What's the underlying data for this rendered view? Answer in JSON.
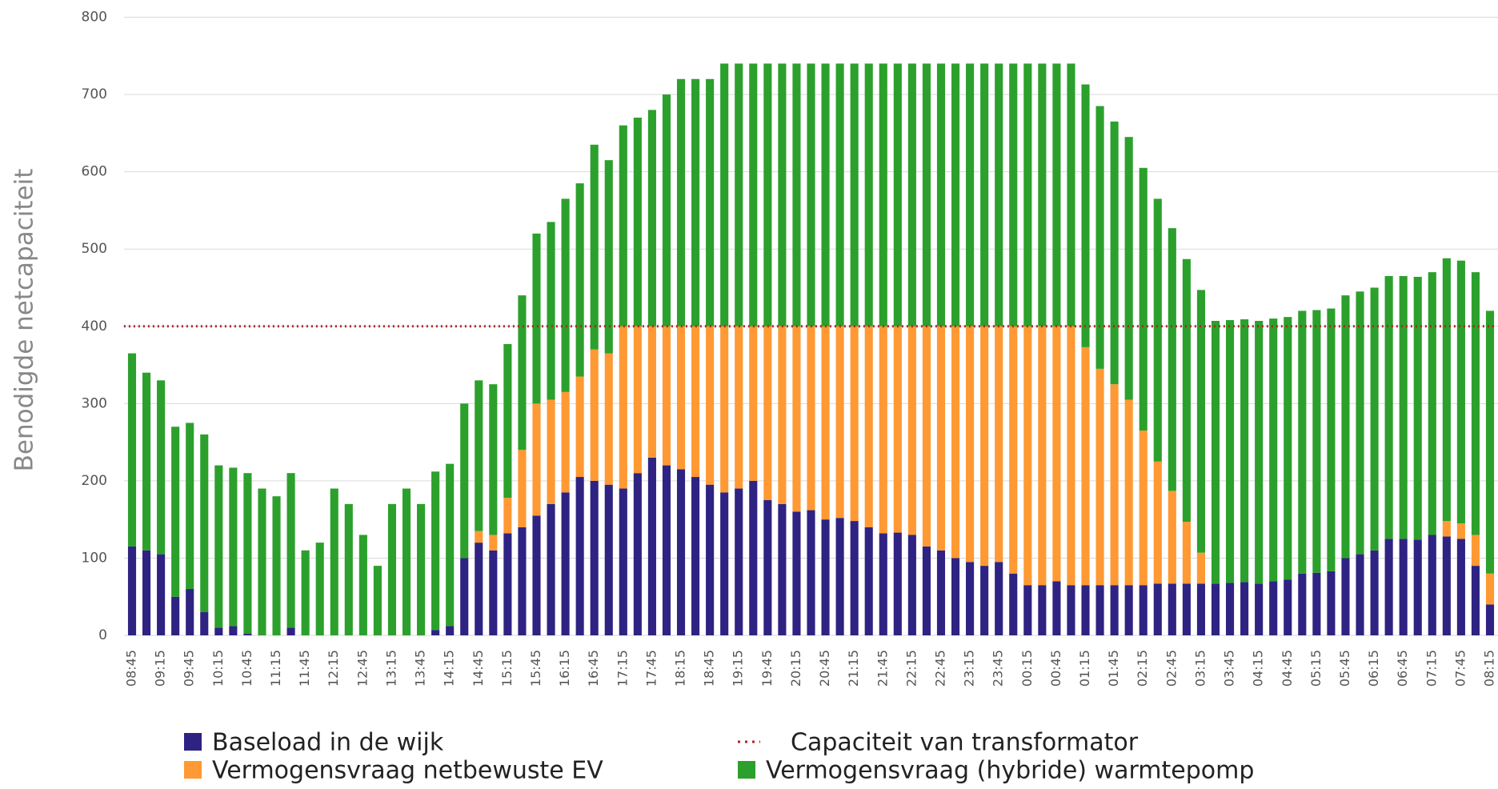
{
  "chart_data": {
    "type": "bar",
    "stacked": true,
    "y_label": "Benodigde netcapaciteit",
    "categories": [
      "08:45",
      null,
      "09:15",
      null,
      "09:45",
      null,
      "10:15",
      null,
      "10:45",
      null,
      "11:15",
      null,
      "11:45",
      null,
      "12:15",
      null,
      "12:45",
      null,
      "13:15",
      null,
      "13:45",
      null,
      "14:15",
      null,
      "14:45",
      null,
      "15:15",
      null,
      "15:45",
      null,
      "16:15",
      null,
      "16:45",
      null,
      "17:15",
      null,
      "17:45",
      null,
      "18:15",
      null,
      "18:45",
      null,
      "19:15",
      null,
      "19:45",
      null,
      "20:15",
      null,
      "20:45",
      null,
      "21:15",
      null,
      "21:45",
      null,
      "22:15",
      null,
      "22:45",
      null,
      "23:15",
      null,
      "23:45",
      null,
      "00:15",
      null,
      "00:45",
      null,
      "01:15",
      null,
      "01:45",
      null,
      "02:15",
      null,
      "02:45",
      null,
      "03:15",
      null,
      "03:45",
      null,
      "04:15",
      null,
      "04:45",
      null,
      "05:15",
      null,
      "05:45",
      null,
      "06:15",
      null,
      "06:45",
      null,
      "07:15",
      null,
      "07:45",
      null,
      "08:15"
    ],
    "series": [
      {
        "name": "Baseload in de wijk",
        "color": "#2e2382",
        "values": [
          115,
          110,
          105,
          50,
          60,
          30,
          10,
          12,
          2,
          0,
          0,
          10,
          0,
          0,
          0,
          0,
          0,
          0,
          0,
          0,
          0,
          7,
          12,
          100,
          120,
          110,
          132,
          140,
          155,
          170,
          185,
          205,
          200,
          195,
          190,
          210,
          230,
          220,
          215,
          205,
          195,
          185,
          190,
          200,
          175,
          170,
          160,
          162,
          150,
          152,
          148,
          140,
          132,
          133,
          130,
          115,
          110,
          100,
          95,
          90,
          95,
          80,
          65,
          65,
          70,
          65,
          65,
          65,
          65,
          65,
          65,
          67,
          67,
          67,
          67,
          67,
          68,
          69,
          67,
          70,
          72,
          80,
          81,
          83,
          100,
          105,
          110,
          125,
          125,
          124,
          130,
          128,
          125,
          90,
          40
        ]
      },
      {
        "name": "Vermogensvraag  netbewuste EV",
        "color": "#ff9933",
        "values": [
          0,
          0,
          0,
          0,
          0,
          0,
          0,
          0,
          0,
          0,
          0,
          0,
          0,
          0,
          0,
          0,
          0,
          0,
          0,
          0,
          0,
          0,
          0,
          0,
          15,
          20,
          46,
          100,
          145,
          135,
          130,
          130,
          170,
          170,
          210,
          190,
          170,
          180,
          185,
          195,
          205,
          215,
          210,
          200,
          225,
          230,
          240,
          238,
          250,
          248,
          252,
          260,
          268,
          267,
          270,
          285,
          290,
          300,
          305,
          310,
          305,
          320,
          335,
          335,
          330,
          335,
          308,
          280,
          260,
          240,
          200,
          158,
          120,
          80,
          40,
          0,
          0,
          0,
          0,
          0,
          0,
          0,
          0,
          0,
          0,
          0,
          0,
          0,
          0,
          0,
          0,
          20,
          20,
          40,
          40
        ]
      },
      {
        "name": "Vermogensvraag (hybride) warmtepomp",
        "color": "#2ca02c",
        "values": [
          250,
          230,
          225,
          220,
          215,
          230,
          210,
          205,
          208,
          190,
          180,
          200,
          110,
          120,
          190,
          170,
          130,
          90,
          170,
          190,
          170,
          205,
          210,
          200,
          195,
          195,
          199,
          200,
          220,
          230,
          250,
          250,
          265,
          250,
          260,
          270,
          280,
          300,
          320,
          320,
          320,
          340,
          340,
          340,
          340,
          340,
          340,
          340,
          340,
          340,
          340,
          340,
          340,
          340,
          340,
          340,
          340,
          340,
          340,
          340,
          340,
          340,
          340,
          340,
          340,
          340,
          340,
          340,
          340,
          340,
          340,
          340,
          340,
          340,
          340,
          340,
          340,
          340,
          340,
          340,
          340,
          340,
          340,
          340,
          340,
          340,
          340,
          340,
          340,
          340,
          340,
          340,
          340,
          340,
          340
        ]
      }
    ],
    "capacity_line": {
      "name": "Capaciteit van transformator",
      "color": "#b22222",
      "value": 400
    },
    "ylim": [
      0,
      800
    ],
    "yticks": [
      0,
      100,
      200,
      300,
      400,
      500,
      600,
      700,
      800
    ],
    "grid": true
  }
}
